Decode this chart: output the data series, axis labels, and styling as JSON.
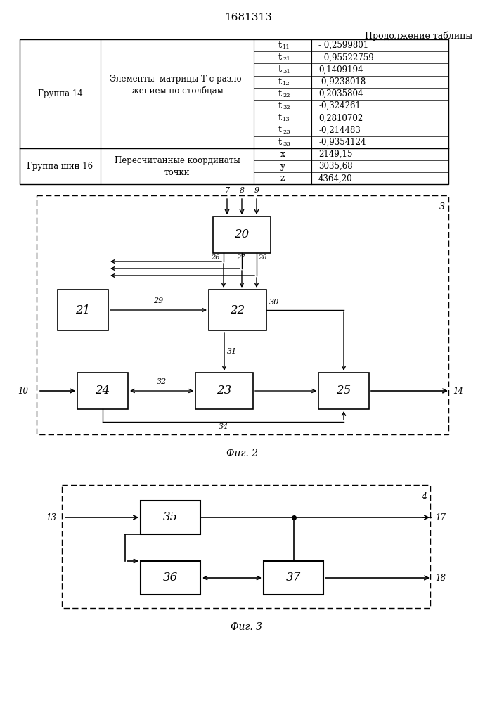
{
  "title": "1681313",
  "subtitle": "Продолжение таблицы",
  "col2_labels": [
    [
      "t",
      "11"
    ],
    [
      "t",
      "21"
    ],
    [
      "t",
      "31"
    ],
    [
      "t",
      "12"
    ],
    [
      "t",
      "22"
    ],
    [
      "t",
      "32"
    ],
    [
      "t",
      "13"
    ],
    [
      "t",
      "23"
    ],
    [
      "t",
      "33"
    ],
    [
      "x",
      ""
    ],
    [
      "y",
      ""
    ],
    [
      "z",
      ""
    ]
  ],
  "col3_values": [
    "- 0,2599801",
    "- 0,95522759",
    "0,1409194",
    "-0,9238018",
    "0,2035804",
    "-0,324261",
    "0,2810702",
    "-0,214483",
    "-0,9354124",
    "2149,15",
    "3035,68",
    "4364,20"
  ],
  "fig2_label": "Фиг. 2",
  "fig3_label": "Фиг. 3"
}
